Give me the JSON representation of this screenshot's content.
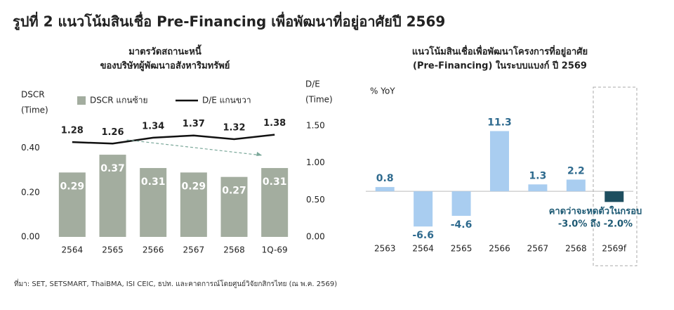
{
  "figure_title": "รูปที่ 2  แนวโน้มสินเชื่อ Pre-Financing เพื่อพัฒนาที่อยู่อาศัยปี 2569",
  "source": "ที่มา: SET, SETSMART, ThaiBMA, ISI CEIC, ธปท. และคาดการณ์โดยศูนย์วิจัยกสิกรไทย (ณ พ.ค. 2569)",
  "chart_data": [
    {
      "type": "bar-line",
      "title": [
        "มาตรวัดสถานะหนี้",
        "ของบริษัทผู้พัฒนาอสังหาริมทรัพย์"
      ],
      "y_label": [
        "DSCR",
        "(Time)"
      ],
      "y2_label": [
        "D/E",
        "(Time)"
      ],
      "categories": [
        "2564",
        "2565",
        "2566",
        "2567",
        "2568",
        "1Q-69"
      ],
      "series": [
        {
          "name": "DSCR แกนซ้าย",
          "type": "bar",
          "color": "#a3ad9f",
          "values": [
            0.29,
            0.37,
            0.31,
            0.29,
            0.27,
            0.31
          ]
        },
        {
          "name": "D/E แกนขวา",
          "type": "line",
          "axis": "y2",
          "color": "#111111",
          "values": [
            1.28,
            1.26,
            1.34,
            1.37,
            1.32,
            1.38
          ]
        }
      ],
      "ylim": [
        0,
        0.5
      ],
      "yticks": [
        {
          "value": 0,
          "label": "0.00"
        },
        {
          "value": 0.2,
          "label": "0.20"
        },
        {
          "value": 0.4,
          "label": "0.40"
        }
      ],
      "y2lim": [
        0,
        1.5
      ],
      "y2ticks": [
        {
          "value": 0,
          "label": "0.00"
        },
        {
          "value": 0.5,
          "label": "0.50"
        },
        {
          "value": 1,
          "label": "1.00"
        },
        {
          "value": 1.5,
          "label": "1.50"
        }
      ]
    },
    {
      "type": "bar",
      "title": [
        "แนวโน้มสินเชื่อเพื่อพัฒนาโครงการที่อยู่อาศัย",
        "(Pre-Financing) ในระบบแบงก์ ปี 2569"
      ],
      "y_label": "% YoY",
      "categories": [
        "2563",
        "2564",
        "2565",
        "2566",
        "2567",
        "2568",
        "2569f"
      ],
      "values": [
        0.8,
        -6.6,
        -4.6,
        11.3,
        1.3,
        2.2,
        -2.0
      ],
      "value_labels": [
        "0.8",
        "-6.6",
        "-4.6",
        "11.3",
        "1.3",
        "2.2",
        null
      ],
      "colors": [
        "#a9cdf0",
        "#a9cdf0",
        "#a9cdf0",
        "#a9cdf0",
        "#a9cdf0",
        "#a9cdf0",
        "#1e4e5f"
      ],
      "ylim": [
        -10,
        14
      ],
      "annotation": [
        "คาดว่าจะหดตัวในกรอบ",
        "-3.0% ถึง -2.0%"
      ]
    }
  ]
}
